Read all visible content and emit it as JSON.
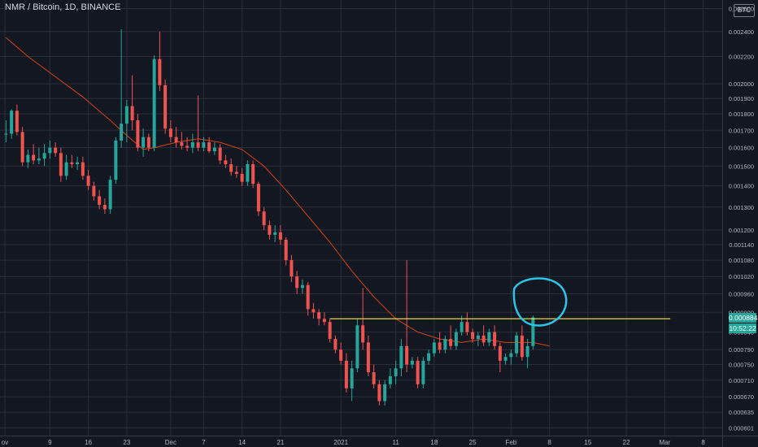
{
  "header": {
    "title": "NMR / Bitcoin, 1D, BINANCE",
    "currency_badge": "BTC"
  },
  "price_tags": {
    "last_price": "0.000884",
    "countdown": "10:52:22",
    "last_price_color": "#26a69a",
    "countdown_color": "#26a69a"
  },
  "colors": {
    "background": "#131722",
    "grid": "#2a2e39",
    "up_candle": "#26a69a",
    "down_candle": "#ef5350",
    "moving_average": "#d84315",
    "horizontal_line": "#ffeb3b",
    "annotation_circle": "#29c5e6"
  },
  "chart_data": {
    "type": "candlestick",
    "symbol": "NMR / Bitcoin",
    "interval": "1D",
    "exchange": "BINANCE",
    "scale": "log",
    "grid": true,
    "x_tick_labels": [
      "ov",
      "9",
      "16",
      "23",
      "Dec",
      "7",
      "14",
      "21",
      "2021",
      "11",
      "18",
      "25",
      "Feb",
      "8",
      "15",
      "22",
      "Mar",
      "8"
    ],
    "y_tick_labels": [
      "0.002600",
      "0.002400",
      "0.002200",
      "0.002000",
      "0.001900",
      "0.001800",
      "0.001700",
      "0.001600",
      "0.001500",
      "0.001400",
      "0.001300",
      "0.001200",
      "0.001140",
      "0.001080",
      "0.001020",
      "0.000960",
      "0.000900",
      "0.000840",
      "0.000790",
      "0.000750",
      "0.000710",
      "0.000670",
      "0.000635",
      "0.000601"
    ],
    "y_ticks": [
      0.0026,
      0.0024,
      0.0022,
      0.002,
      0.0019,
      0.0018,
      0.0017,
      0.0016,
      0.0015,
      0.0014,
      0.0013,
      0.0012,
      0.00114,
      0.00108,
      0.00102,
      0.00096,
      0.0009,
      0.00084,
      0.00079,
      0.00075,
      0.00071,
      0.00067,
      0.000635,
      0.000601
    ],
    "ylim": [
      0.000585,
      0.00268
    ],
    "x_range": [
      "2020-11-01",
      "2021-03-15"
    ],
    "candles": [
      {
        "date": "2020-11-01",
        "o": 0.00168,
        "h": 0.00176,
        "l": 0.00163,
        "c": 0.00168
      },
      {
        "date": "2020-11-02",
        "o": 0.00168,
        "h": 0.00183,
        "l": 0.00165,
        "c": 0.00182
      },
      {
        "date": "2020-11-03",
        "o": 0.00182,
        "h": 0.00186,
        "l": 0.00167,
        "c": 0.00169
      },
      {
        "date": "2020-11-04",
        "o": 0.00169,
        "h": 0.00172,
        "l": 0.0015,
        "c": 0.00152
      },
      {
        "date": "2020-11-05",
        "o": 0.00152,
        "h": 0.00159,
        "l": 0.00149,
        "c": 0.00156
      },
      {
        "date": "2020-11-06",
        "o": 0.00156,
        "h": 0.00162,
        "l": 0.00151,
        "c": 0.00153
      },
      {
        "date": "2020-11-07",
        "o": 0.00153,
        "h": 0.0016,
        "l": 0.00151,
        "c": 0.00154
      },
      {
        "date": "2020-11-08",
        "o": 0.00154,
        "h": 0.00162,
        "l": 0.0015,
        "c": 0.00157
      },
      {
        "date": "2020-11-09",
        "o": 0.00157,
        "h": 0.00164,
        "l": 0.00154,
        "c": 0.0016
      },
      {
        "date": "2020-11-10",
        "o": 0.0016,
        "h": 0.00163,
        "l": 0.00155,
        "c": 0.00157
      },
      {
        "date": "2020-11-11",
        "o": 0.00157,
        "h": 0.0016,
        "l": 0.00142,
        "c": 0.00145
      },
      {
        "date": "2020-11-12",
        "o": 0.00145,
        "h": 0.00156,
        "l": 0.00143,
        "c": 0.00152
      },
      {
        "date": "2020-11-13",
        "o": 0.00152,
        "h": 0.00156,
        "l": 0.00149,
        "c": 0.00151
      },
      {
        "date": "2020-11-14",
        "o": 0.00151,
        "h": 0.00155,
        "l": 0.00148,
        "c": 0.00152
      },
      {
        "date": "2020-11-15",
        "o": 0.00152,
        "h": 0.00155,
        "l": 0.00143,
        "c": 0.00145
      },
      {
        "date": "2020-11-16",
        "o": 0.00145,
        "h": 0.00148,
        "l": 0.00138,
        "c": 0.0014
      },
      {
        "date": "2020-11-17",
        "o": 0.0014,
        "h": 0.00142,
        "l": 0.00133,
        "c": 0.00135
      },
      {
        "date": "2020-11-18",
        "o": 0.00135,
        "h": 0.00138,
        "l": 0.00129,
        "c": 0.00131
      },
      {
        "date": "2020-11-19",
        "o": 0.00131,
        "h": 0.00134,
        "l": 0.00127,
        "c": 0.00129
      },
      {
        "date": "2020-11-20",
        "o": 0.00129,
        "h": 0.00145,
        "l": 0.00127,
        "c": 0.00143
      },
      {
        "date": "2020-11-21",
        "o": 0.00143,
        "h": 0.00166,
        "l": 0.00141,
        "c": 0.00164
      },
      {
        "date": "2020-11-22",
        "o": 0.00164,
        "h": 0.00242,
        "l": 0.0016,
        "c": 0.00174
      },
      {
        "date": "2020-11-23",
        "o": 0.00174,
        "h": 0.00189,
        "l": 0.00163,
        "c": 0.00185
      },
      {
        "date": "2020-11-24",
        "o": 0.00185,
        "h": 0.00206,
        "l": 0.0017,
        "c": 0.00176
      },
      {
        "date": "2020-11-25",
        "o": 0.00176,
        "h": 0.0018,
        "l": 0.00158,
        "c": 0.0016
      },
      {
        "date": "2020-11-26",
        "o": 0.0016,
        "h": 0.00171,
        "l": 0.00155,
        "c": 0.00166
      },
      {
        "date": "2020-11-27",
        "o": 0.00166,
        "h": 0.00168,
        "l": 0.00158,
        "c": 0.0016
      },
      {
        "date": "2020-11-28",
        "o": 0.0016,
        "h": 0.00221,
        "l": 0.00158,
        "c": 0.00218
      },
      {
        "date": "2020-11-29",
        "o": 0.00218,
        "h": 0.0024,
        "l": 0.00195,
        "c": 0.00199
      },
      {
        "date": "2020-11-30",
        "o": 0.00199,
        "h": 0.00203,
        "l": 0.00168,
        "c": 0.00171
      },
      {
        "date": "2020-12-01",
        "o": 0.00171,
        "h": 0.00176,
        "l": 0.00163,
        "c": 0.00166
      },
      {
        "date": "2020-12-02",
        "o": 0.00166,
        "h": 0.00172,
        "l": 0.0016,
        "c": 0.00163
      },
      {
        "date": "2020-12-03",
        "o": 0.00163,
        "h": 0.00169,
        "l": 0.00159,
        "c": 0.00161
      },
      {
        "date": "2020-12-04",
        "o": 0.00161,
        "h": 0.00166,
        "l": 0.00158,
        "c": 0.0016
      },
      {
        "date": "2020-12-05",
        "o": 0.0016,
        "h": 0.00168,
        "l": 0.00157,
        "c": 0.00163
      },
      {
        "date": "2020-12-06",
        "o": 0.00163,
        "h": 0.00192,
        "l": 0.00158,
        "c": 0.0016
      },
      {
        "date": "2020-12-07",
        "o": 0.0016,
        "h": 0.00166,
        "l": 0.00158,
        "c": 0.00163
      },
      {
        "date": "2020-12-08",
        "o": 0.00163,
        "h": 0.00166,
        "l": 0.00157,
        "c": 0.00158
      },
      {
        "date": "2020-12-09",
        "o": 0.00158,
        "h": 0.00163,
        "l": 0.00156,
        "c": 0.0016
      },
      {
        "date": "2020-12-10",
        "o": 0.0016,
        "h": 0.00162,
        "l": 0.00151,
        "c": 0.00153
      },
      {
        "date": "2020-12-11",
        "o": 0.00153,
        "h": 0.00156,
        "l": 0.00149,
        "c": 0.00151
      },
      {
        "date": "2020-12-12",
        "o": 0.00151,
        "h": 0.00154,
        "l": 0.00145,
        "c": 0.00147
      },
      {
        "date": "2020-12-13",
        "o": 0.00147,
        "h": 0.0015,
        "l": 0.00144,
        "c": 0.00146
      },
      {
        "date": "2020-12-14",
        "o": 0.00146,
        "h": 0.00149,
        "l": 0.0014,
        "c": 0.00142
      },
      {
        "date": "2020-12-15",
        "o": 0.00142,
        "h": 0.00153,
        "l": 0.0014,
        "c": 0.00151
      },
      {
        "date": "2020-12-16",
        "o": 0.00151,
        "h": 0.00153,
        "l": 0.00139,
        "c": 0.00141
      },
      {
        "date": "2020-12-17",
        "o": 0.00141,
        "h": 0.00142,
        "l": 0.00126,
        "c": 0.00128
      },
      {
        "date": "2020-12-18",
        "o": 0.00128,
        "h": 0.0013,
        "l": 0.0012,
        "c": 0.00122
      },
      {
        "date": "2020-12-19",
        "o": 0.00122,
        "h": 0.00124,
        "l": 0.00116,
        "c": 0.00118
      },
      {
        "date": "2020-12-20",
        "o": 0.00118,
        "h": 0.00122,
        "l": 0.00115,
        "c": 0.00119
      },
      {
        "date": "2020-12-21",
        "o": 0.00119,
        "h": 0.00122,
        "l": 0.00114,
        "c": 0.00116
      },
      {
        "date": "2020-12-22",
        "o": 0.00116,
        "h": 0.00117,
        "l": 0.00106,
        "c": 0.00108
      },
      {
        "date": "2020-12-23",
        "o": 0.00108,
        "h": 0.0011,
        "l": 0.001,
        "c": 0.00102
      },
      {
        "date": "2020-12-24",
        "o": 0.00102,
        "h": 0.00104,
        "l": 0.00096,
        "c": 0.00098
      },
      {
        "date": "2020-12-25",
        "o": 0.00098,
        "h": 0.00101,
        "l": 0.00096,
        "c": 0.00099
      },
      {
        "date": "2020-12-26",
        "o": 0.00099,
        "h": 0.001,
        "l": 0.00089,
        "c": 0.00091
      },
      {
        "date": "2020-12-27",
        "o": 0.00091,
        "h": 0.00093,
        "l": 0.00088,
        "c": 0.0009
      },
      {
        "date": "2020-12-28",
        "o": 0.0009,
        "h": 0.00091,
        "l": 0.00086,
        "c": 0.00088
      },
      {
        "date": "2020-12-29",
        "o": 0.00088,
        "h": 0.0009,
        "l": 0.00086,
        "c": 0.00087
      },
      {
        "date": "2020-12-30",
        "o": 0.00087,
        "h": 0.00088,
        "l": 0.00081,
        "c": 0.00082
      },
      {
        "date": "2020-12-31",
        "o": 0.00082,
        "h": 0.00083,
        "l": 0.00078,
        "c": 0.00079
      },
      {
        "date": "2021-01-01",
        "o": 0.00079,
        "h": 0.00081,
        "l": 0.00075,
        "c": 0.00076
      },
      {
        "date": "2021-01-02",
        "o": 0.00076,
        "h": 0.00078,
        "l": 0.00068,
        "c": 0.00069
      },
      {
        "date": "2021-01-03",
        "o": 0.00069,
        "h": 0.00076,
        "l": 0.00066,
        "c": 0.00074
      },
      {
        "date": "2021-01-04",
        "o": 0.00074,
        "h": 0.00088,
        "l": 0.00073,
        "c": 0.00086
      },
      {
        "date": "2021-01-05",
        "o": 0.00086,
        "h": 0.00098,
        "l": 0.00079,
        "c": 0.00081
      },
      {
        "date": "2021-01-06",
        "o": 0.00081,
        "h": 0.00083,
        "l": 0.00072,
        "c": 0.00073
      },
      {
        "date": "2021-01-07",
        "o": 0.00073,
        "h": 0.00075,
        "l": 0.00069,
        "c": 0.0007
      },
      {
        "date": "2021-01-08",
        "o": 0.0007,
        "h": 0.00071,
        "l": 0.00065,
        "c": 0.00066
      },
      {
        "date": "2021-01-09",
        "o": 0.00066,
        "h": 0.00071,
        "l": 0.00065,
        "c": 0.0007
      },
      {
        "date": "2021-01-10",
        "o": 0.0007,
        "h": 0.00074,
        "l": 0.00069,
        "c": 0.00072
      },
      {
        "date": "2021-01-11",
        "o": 0.00072,
        "h": 0.00076,
        "l": 0.0007,
        "c": 0.00074
      },
      {
        "date": "2021-01-12",
        "o": 0.00074,
        "h": 0.00082,
        "l": 0.00072,
        "c": 0.0008
      },
      {
        "date": "2021-01-13",
        "o": 0.0008,
        "h": 0.00108,
        "l": 0.00073,
        "c": 0.00075
      },
      {
        "date": "2021-01-14",
        "o": 0.00075,
        "h": 0.00077,
        "l": 0.00074,
        "c": 0.00076
      },
      {
        "date": "2021-01-15",
        "o": 0.00076,
        "h": 0.00077,
        "l": 0.00069,
        "c": 0.0007
      },
      {
        "date": "2021-01-16",
        "o": 0.0007,
        "h": 0.00077,
        "l": 0.00069,
        "c": 0.00076
      },
      {
        "date": "2021-01-17",
        "o": 0.00076,
        "h": 0.00079,
        "l": 0.00075,
        "c": 0.00078
      },
      {
        "date": "2021-01-18",
        "o": 0.00078,
        "h": 0.00082,
        "l": 0.00077,
        "c": 0.00081
      },
      {
        "date": "2021-01-19",
        "o": 0.00081,
        "h": 0.00084,
        "l": 0.00078,
        "c": 0.00079
      },
      {
        "date": "2021-01-20",
        "o": 0.00079,
        "h": 0.00083,
        "l": 0.00078,
        "c": 0.00082
      },
      {
        "date": "2021-01-21",
        "o": 0.00082,
        "h": 0.00086,
        "l": 0.00079,
        "c": 0.0008
      },
      {
        "date": "2021-01-22",
        "o": 0.0008,
        "h": 0.00085,
        "l": 0.00079,
        "c": 0.00084
      },
      {
        "date": "2021-01-23",
        "o": 0.00084,
        "h": 0.00089,
        "l": 0.00083,
        "c": 0.00087
      },
      {
        "date": "2021-01-24",
        "o": 0.00087,
        "h": 0.0009,
        "l": 0.00083,
        "c": 0.00084
      },
      {
        "date": "2021-01-25",
        "o": 0.00084,
        "h": 0.00085,
        "l": 0.00081,
        "c": 0.00082
      },
      {
        "date": "2021-01-26",
        "o": 0.00082,
        "h": 0.00084,
        "l": 0.0008,
        "c": 0.00083
      },
      {
        "date": "2021-01-27",
        "o": 0.00083,
        "h": 0.00086,
        "l": 0.0008,
        "c": 0.00081
      },
      {
        "date": "2021-01-28",
        "o": 0.00081,
        "h": 0.00085,
        "l": 0.0008,
        "c": 0.00084
      },
      {
        "date": "2021-01-29",
        "o": 0.00084,
        "h": 0.00086,
        "l": 0.00079,
        "c": 0.0008
      },
      {
        "date": "2021-01-30",
        "o": 0.0008,
        "h": 0.00081,
        "l": 0.00073,
        "c": 0.00076
      },
      {
        "date": "2021-01-31",
        "o": 0.00076,
        "h": 0.00078,
        "l": 0.00075,
        "c": 0.00077
      },
      {
        "date": "2021-02-01",
        "o": 0.00077,
        "h": 0.00079,
        "l": 0.00075,
        "c": 0.00078
      },
      {
        "date": "2021-02-02",
        "o": 0.00078,
        "h": 0.00084,
        "l": 0.00077,
        "c": 0.00083
      },
      {
        "date": "2021-02-03",
        "o": 0.00083,
        "h": 0.00086,
        "l": 0.00076,
        "c": 0.00077
      },
      {
        "date": "2021-02-04",
        "o": 0.00077,
        "h": 0.00082,
        "l": 0.00074,
        "c": 0.0008
      },
      {
        "date": "2021-02-05",
        "o": 0.0008,
        "h": 0.00089,
        "l": 0.00079,
        "c": 0.000884
      }
    ],
    "moving_average": {
      "color": "#d84315",
      "points": [
        {
          "date": "2020-11-01",
          "v": 0.00235
        },
        {
          "date": "2020-11-05",
          "v": 0.0022
        },
        {
          "date": "2020-11-10",
          "v": 0.00205
        },
        {
          "date": "2020-11-15",
          "v": 0.00191
        },
        {
          "date": "2020-11-20",
          "v": 0.00176
        },
        {
          "date": "2020-11-23",
          "v": 0.00167
        },
        {
          "date": "2020-11-26",
          "v": 0.00159
        },
        {
          "date": "2020-11-28",
          "v": 0.0016
        },
        {
          "date": "2020-12-02",
          "v": 0.00163
        },
        {
          "date": "2020-12-06",
          "v": 0.00165
        },
        {
          "date": "2020-12-10",
          "v": 0.00163
        },
        {
          "date": "2020-12-14",
          "v": 0.00159
        },
        {
          "date": "2020-12-18",
          "v": 0.0015
        },
        {
          "date": "2020-12-22",
          "v": 0.00138
        },
        {
          "date": "2020-12-26",
          "v": 0.00126
        },
        {
          "date": "2020-12-30",
          "v": 0.00115
        },
        {
          "date": "2021-01-03",
          "v": 0.00104
        },
        {
          "date": "2021-01-07",
          "v": 0.00095
        },
        {
          "date": "2021-01-11",
          "v": 0.00088
        },
        {
          "date": "2021-01-15",
          "v": 0.00084
        },
        {
          "date": "2021-01-19",
          "v": 0.00082
        },
        {
          "date": "2021-01-23",
          "v": 0.00081
        },
        {
          "date": "2021-01-27",
          "v": 0.00082
        },
        {
          "date": "2021-01-31",
          "v": 0.00081
        },
        {
          "date": "2021-02-05",
          "v": 0.00081
        },
        {
          "date": "2021-02-08",
          "v": 0.0008
        }
      ]
    },
    "horizontal_line": {
      "value": 0.00088,
      "start_date": "2020-12-30",
      "end_date": "2021-03-02",
      "color": "#ffeb3b"
    },
    "annotation_circle": {
      "center_date": "2021-02-06",
      "center_value": 0.000928,
      "color": "#29c5e6"
    }
  }
}
